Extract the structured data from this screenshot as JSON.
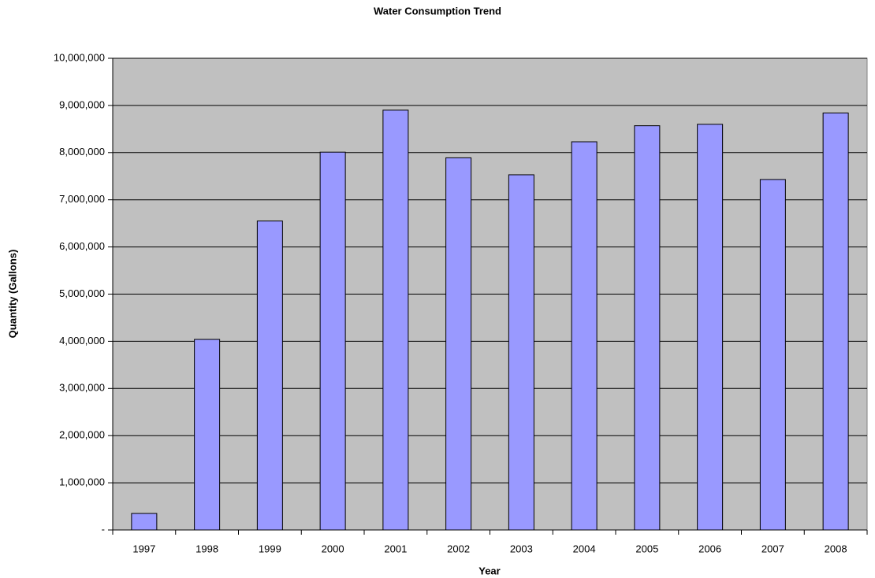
{
  "chart_data": {
    "type": "bar",
    "title": "Water Consumption Trend",
    "xlabel": "Year",
    "ylabel": "Quantity (Gallons)",
    "categories": [
      "1997",
      "1998",
      "1999",
      "2000",
      "2001",
      "2002",
      "2003",
      "2004",
      "2005",
      "2006",
      "2007",
      "2008"
    ],
    "values": [
      350000,
      4040000,
      6550000,
      8010000,
      8900000,
      7890000,
      7530000,
      8230000,
      8570000,
      8600000,
      7430000,
      8840000
    ],
    "color": "#9999ff",
    "ylim": [
      0,
      10000000
    ],
    "yticks": [
      {
        "value": 0,
        "label": "-"
      },
      {
        "value": 1000000,
        "label": "1,000,000"
      },
      {
        "value": 2000000,
        "label": "2,000,000"
      },
      {
        "value": 3000000,
        "label": "3,000,000"
      },
      {
        "value": 4000000,
        "label": "4,000,000"
      },
      {
        "value": 5000000,
        "label": "5,000,000"
      },
      {
        "value": 6000000,
        "label": "6,000,000"
      },
      {
        "value": 7000000,
        "label": "7,000,000"
      },
      {
        "value": 8000000,
        "label": "8,000,000"
      },
      {
        "value": 9000000,
        "label": "9,000,000"
      },
      {
        "value": 10000000,
        "label": "10,000,000"
      }
    ],
    "grid": true
  }
}
